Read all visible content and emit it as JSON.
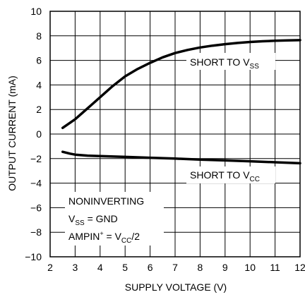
{
  "chart_data": {
    "type": "line",
    "xlabel": "SUPPLY VOLTAGE (V)",
    "ylabel": "OUTPUT CURRENT (mA)",
    "xlim": [
      2,
      12
    ],
    "ylim": [
      -10,
      10
    ],
    "x_ticks": [
      "2",
      "3",
      "4",
      "5",
      "6",
      "7",
      "8",
      "9",
      "10",
      "11",
      "12"
    ],
    "y_ticks": [
      "10",
      "8",
      "6",
      "4",
      "2",
      "0",
      "−2",
      "−4",
      "−6",
      "−8",
      "−10"
    ],
    "grid": true,
    "series": [
      {
        "name": "SHORT TO VSS",
        "x": [
          2.5,
          3,
          3.5,
          4,
          4.5,
          5,
          5.5,
          6,
          6.5,
          7,
          7.5,
          8,
          8.5,
          9,
          9.5,
          10,
          10.5,
          11,
          11.5,
          12
        ],
        "y": [
          0.5,
          1.2,
          2.1,
          3.0,
          3.9,
          4.7,
          5.3,
          5.8,
          6.25,
          6.6,
          6.85,
          7.05,
          7.2,
          7.32,
          7.42,
          7.5,
          7.56,
          7.6,
          7.63,
          7.65
        ]
      },
      {
        "name": "SHORT TO VCC",
        "x": [
          2.5,
          2.8,
          3,
          3.5,
          4,
          5,
          6,
          7,
          8,
          9,
          10,
          11,
          12
        ],
        "y": [
          -1.45,
          -1.6,
          -1.68,
          -1.76,
          -1.8,
          -1.86,
          -1.93,
          -2.0,
          -2.08,
          -2.15,
          -2.22,
          -2.3,
          -2.38
        ]
      }
    ],
    "annotations": {
      "short_vss": {
        "base": "SHORT TO V",
        "sub": "SS"
      },
      "short_vcc": {
        "base": "SHORT TO V",
        "sub": "CC"
      },
      "line1": "NONINVERTING",
      "line2_base": "V",
      "line2_sub": "SS",
      "line2_rest": " = GND",
      "line3_base": "AMPIN",
      "line3_sup": "+",
      "line3_mid": " = V",
      "line3_sub": "CC",
      "line3_rest": "/2"
    }
  }
}
